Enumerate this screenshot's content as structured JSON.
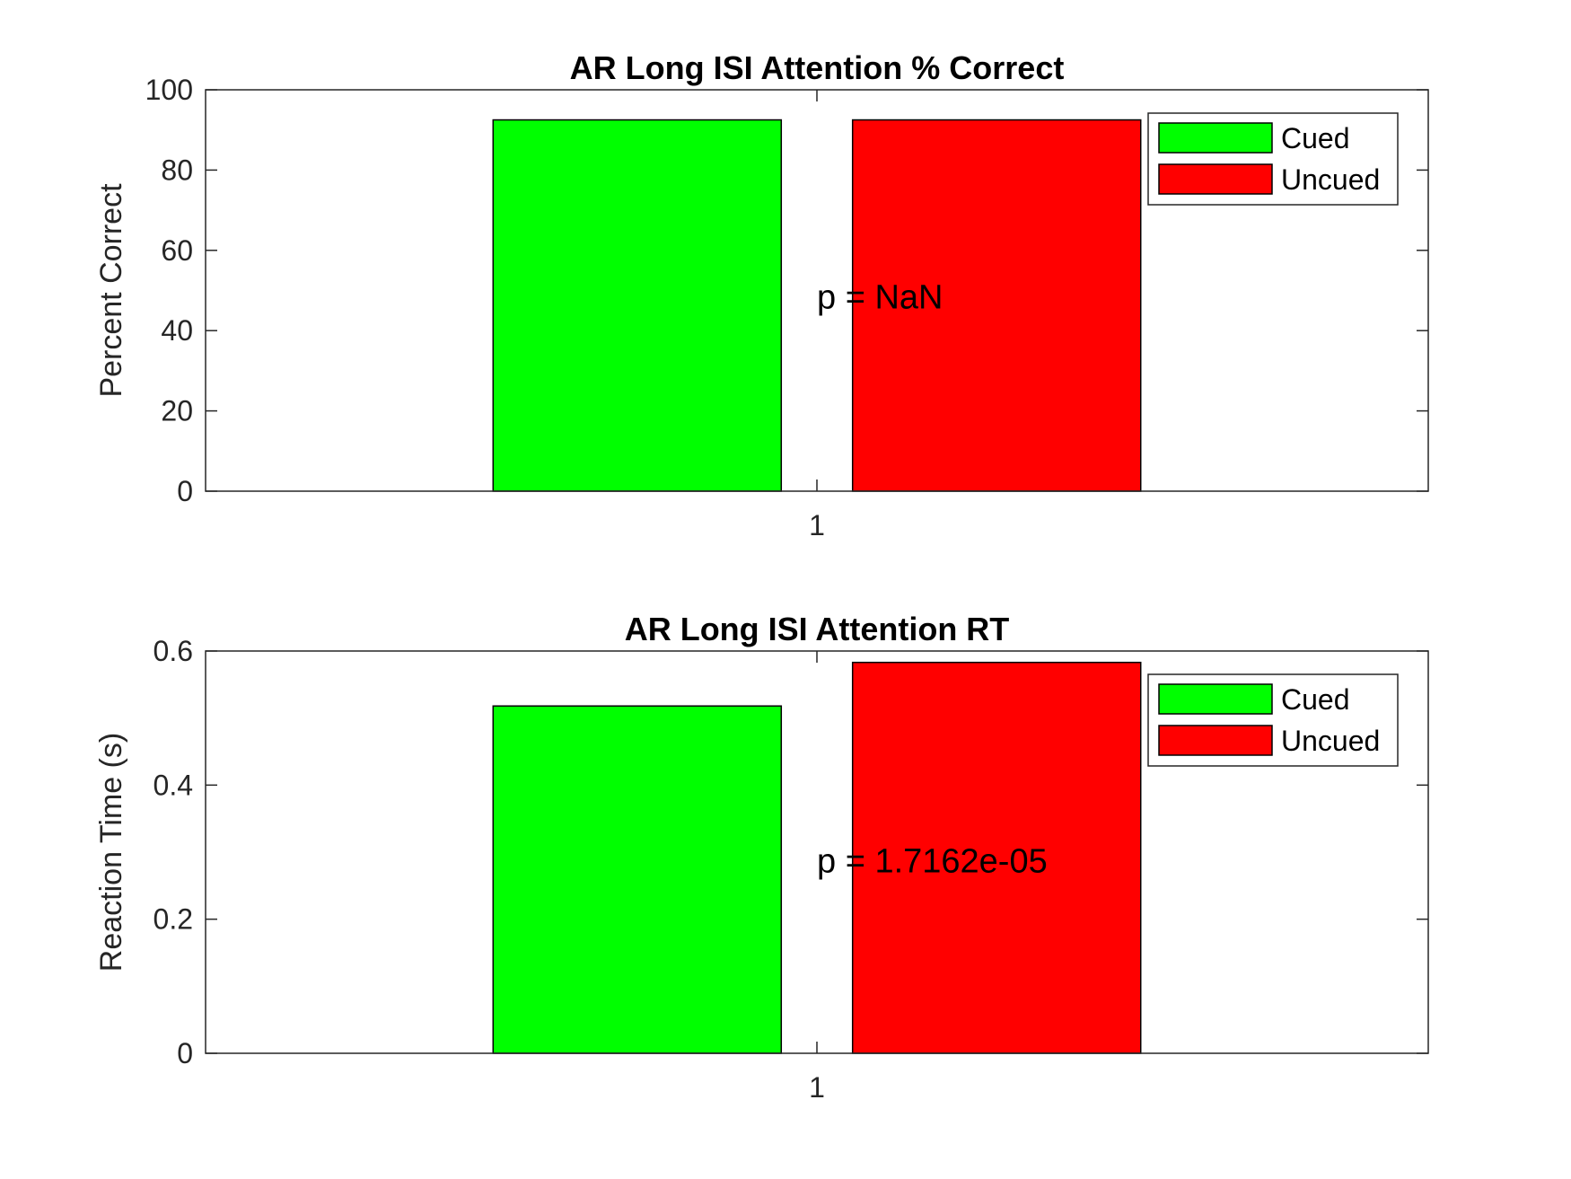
{
  "colors": {
    "cued": "#00ff00",
    "uncued": "#ff0000",
    "axis": "#262626",
    "background": "#ffffff"
  },
  "chart_data": [
    {
      "type": "bar",
      "title": "AR Long ISI Attention % Correct",
      "xlabel": "",
      "ylabel": "Percent Correct",
      "categories": [
        "1"
      ],
      "ylim": [
        0,
        100
      ],
      "yticks": [
        "0",
        "20",
        "40",
        "60",
        "80",
        "100"
      ],
      "series": [
        {
          "name": "Cued",
          "values": [
            92.5
          ]
        },
        {
          "name": "Uncued",
          "values": [
            92.5
          ]
        }
      ],
      "annotation": "p = NaN",
      "legend_position": "top-right",
      "grid": false
    },
    {
      "type": "bar",
      "title": "AR Long ISI Attention RT",
      "xlabel": "",
      "ylabel": "Reaction Time (s)",
      "categories": [
        "1"
      ],
      "ylim": [
        0,
        0.6
      ],
      "yticks": [
        "0",
        "0.2",
        "0.4",
        "0.6"
      ],
      "series": [
        {
          "name": "Cued",
          "values": [
            0.518
          ]
        },
        {
          "name": "Uncued",
          "values": [
            0.583
          ]
        }
      ],
      "annotation": "p = 1.7162e-05",
      "legend_position": "top-right",
      "grid": false
    }
  ]
}
